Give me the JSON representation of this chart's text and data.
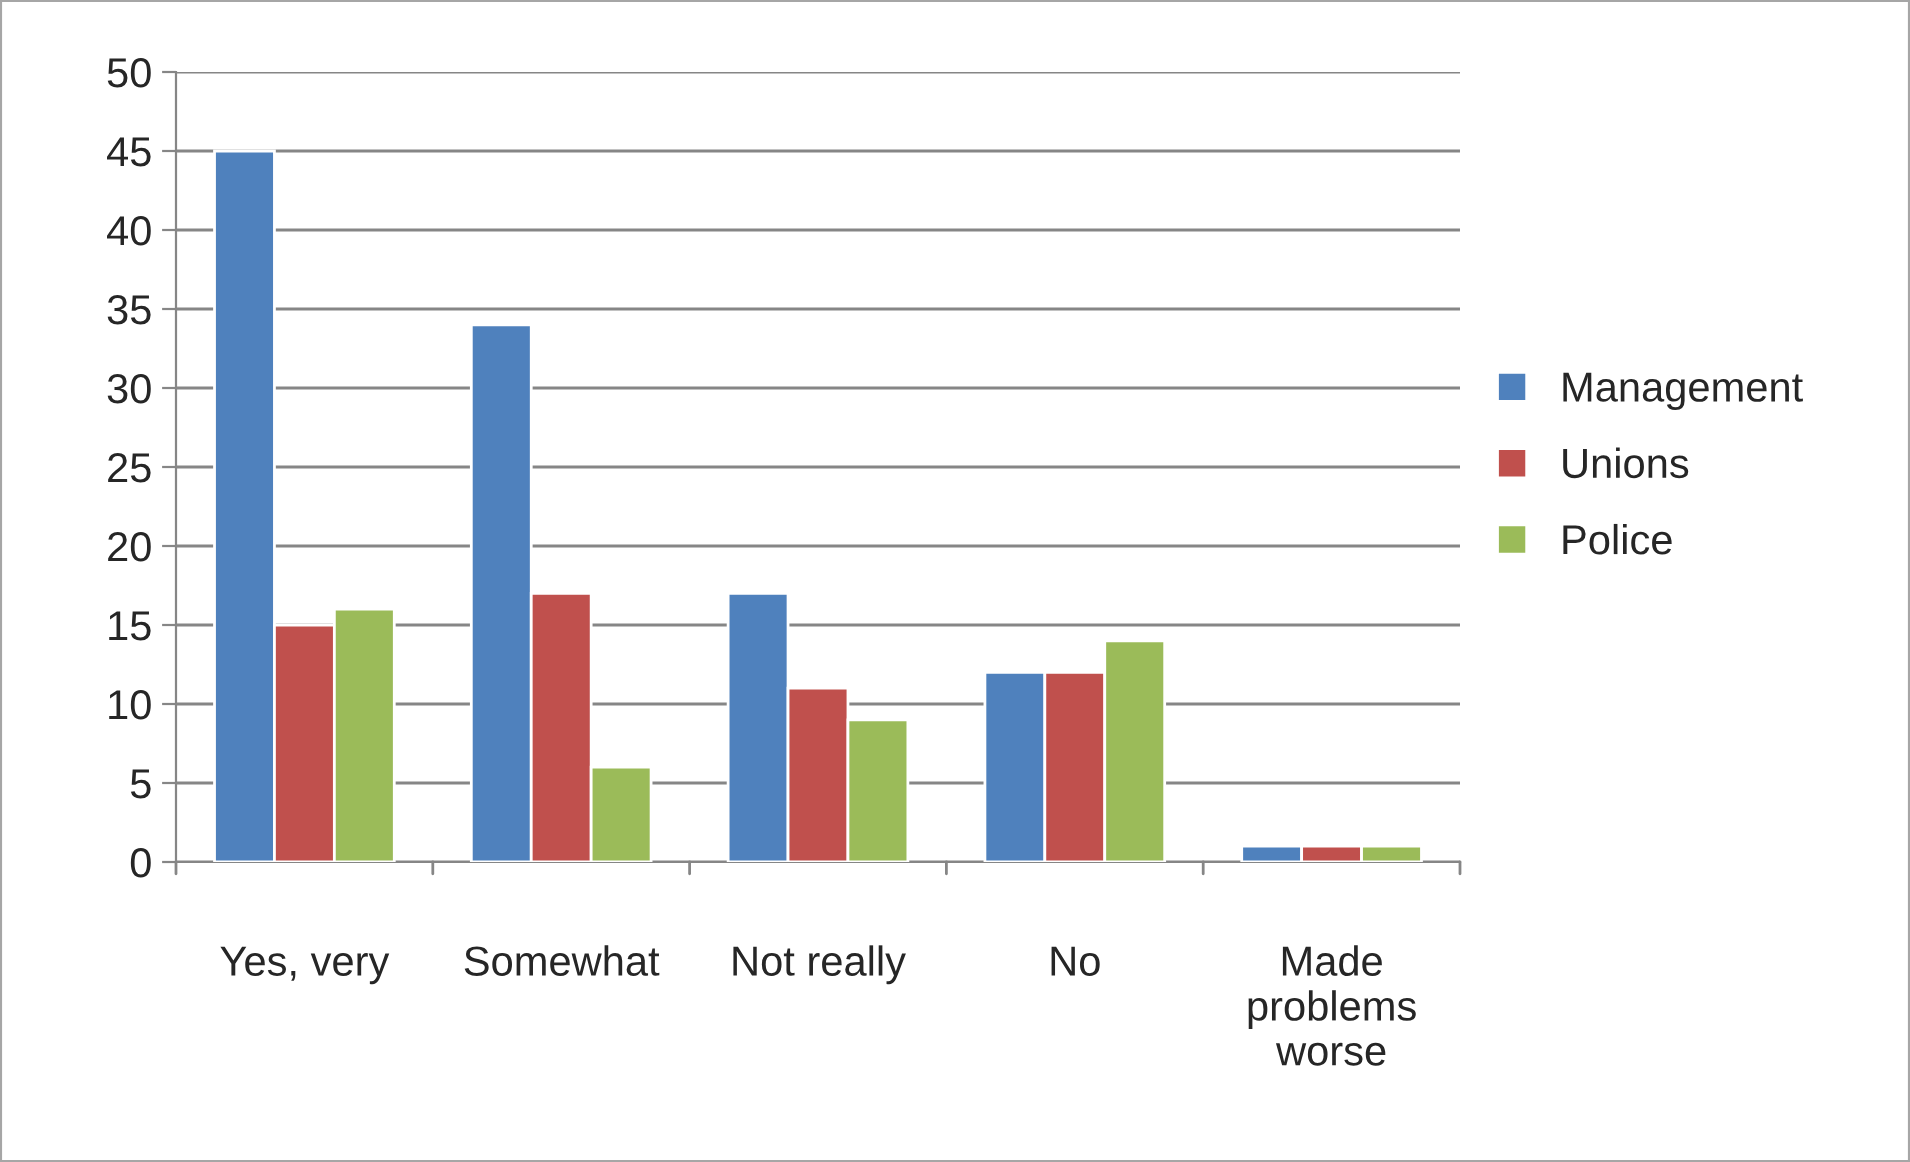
{
  "chart_data": {
    "type": "bar",
    "categories": [
      "Yes, very",
      "Somewhat",
      "Not really",
      "No",
      "Made problems worse"
    ],
    "series": [
      {
        "name": "Management",
        "color": "#4f81bd",
        "values": [
          45,
          34,
          17,
          12,
          1
        ]
      },
      {
        "name": "Unions",
        "color": "#c0504d",
        "values": [
          15,
          17,
          11,
          12,
          1
        ]
      },
      {
        "name": "Police",
        "color": "#9bbb59",
        "values": [
          16,
          6,
          9,
          14,
          1
        ]
      }
    ],
    "ylim": [
      0,
      50
    ],
    "yticks": [
      0,
      5,
      10,
      15,
      20,
      25,
      30,
      35,
      40,
      45,
      50
    ],
    "grid": "y",
    "legend": "right"
  }
}
